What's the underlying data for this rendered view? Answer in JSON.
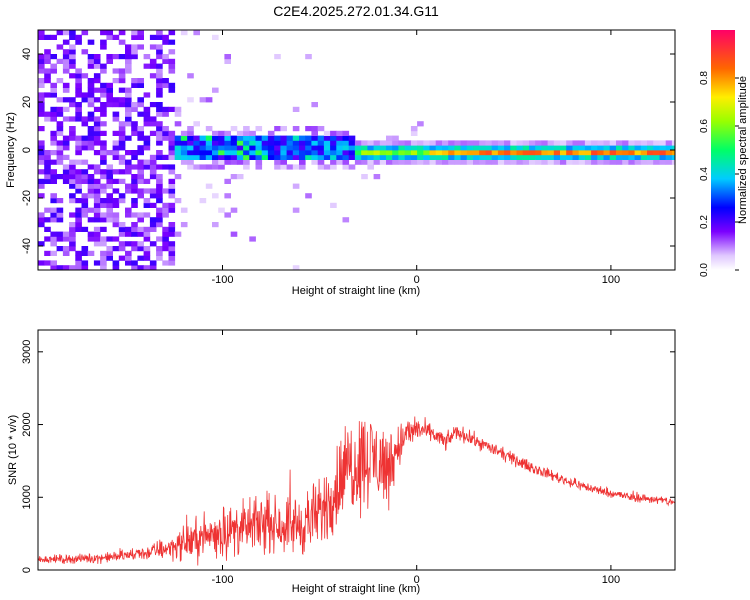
{
  "title": "C2E4.2025.272.01.34.G11",
  "chart_data": [
    {
      "type": "heatmap",
      "title": "C2E4.2025.272.01.34.G11",
      "xlabel": "Height of straight line (km)",
      "ylabel": "Frequency (Hz)",
      "xlim": [
        -195,
        133
      ],
      "ylim": [
        -50,
        50
      ],
      "xticks": [
        -100,
        0,
        100
      ],
      "xtick_labels": [
        "-100",
        "0",
        "100"
      ],
      "yticks": [
        40,
        20,
        0,
        -20,
        -40
      ],
      "ytick_labels": [
        "40",
        "20",
        "0",
        "-20",
        "-40"
      ],
      "colorbar": {
        "label": "Normalized spectral amplitude",
        "range": [
          0,
          1
        ],
        "ticks": [
          0.0,
          0.2,
          0.4,
          0.6,
          0.8
        ],
        "tick_labels": [
          "0.0",
          "0.2",
          "0.4",
          "0.6",
          "0.8"
        ]
      },
      "features": [
        {
          "name": "scattered noise",
          "x_range": [
            -195,
            -125
          ],
          "freq_range": [
            -50,
            50
          ],
          "amplitude": 0.2
        },
        {
          "name": "broadband patch",
          "x_range": [
            -125,
            -35
          ],
          "freq_range": [
            -5,
            6
          ],
          "amplitude": 0.35
        },
        {
          "name": "main peak line",
          "x_range": [
            -35,
            133
          ],
          "freq_center": -1.5,
          "amplitude": 0.85
        }
      ]
    },
    {
      "type": "line",
      "xlabel": "Height of straight line (km)",
      "ylabel": "SNR (10 * v/v)",
      "xlim": [
        -195,
        133
      ],
      "ylim": [
        0,
        3300
      ],
      "xticks": [
        -100,
        0,
        100
      ],
      "xtick_labels": [
        "-100",
        "0",
        "100"
      ],
      "yticks": [
        0,
        1000,
        2000,
        3000
      ],
      "ytick_labels": [
        "0",
        "1000",
        "2000",
        "3000"
      ],
      "series": [
        {
          "name": "SNR",
          "color": "#ee3333",
          "x": [
            -195,
            -180,
            -160,
            -140,
            -120,
            -110,
            -100,
            -90,
            -80,
            -70,
            -60,
            -50,
            -40,
            -35,
            -30,
            -25,
            -20,
            -15,
            -10,
            -5,
            0,
            5,
            10,
            15,
            20,
            25,
            30,
            40,
            50,
            60,
            70,
            80,
            90,
            100,
            110,
            120,
            133
          ],
          "mean": [
            150,
            150,
            170,
            230,
            360,
            460,
            520,
            560,
            640,
            620,
            620,
            760,
            1200,
            1450,
            1500,
            1550,
            1500,
            1400,
            1700,
            1850,
            1950,
            1900,
            1850,
            1750,
            1900,
            1850,
            1780,
            1650,
            1520,
            1400,
            1300,
            1200,
            1120,
            1060,
            1000,
            980,
            930
          ],
          "amp": [
            80,
            90,
            100,
            140,
            320,
            450,
            520,
            520,
            550,
            520,
            650,
            700,
            900,
            1000,
            1000,
            1000,
            900,
            850,
            500,
            380,
            250,
            200,
            180,
            170,
            150,
            150,
            140,
            130,
            120,
            110,
            110,
            100,
            100,
            95,
            90,
            90,
            90
          ]
        }
      ]
    }
  ]
}
